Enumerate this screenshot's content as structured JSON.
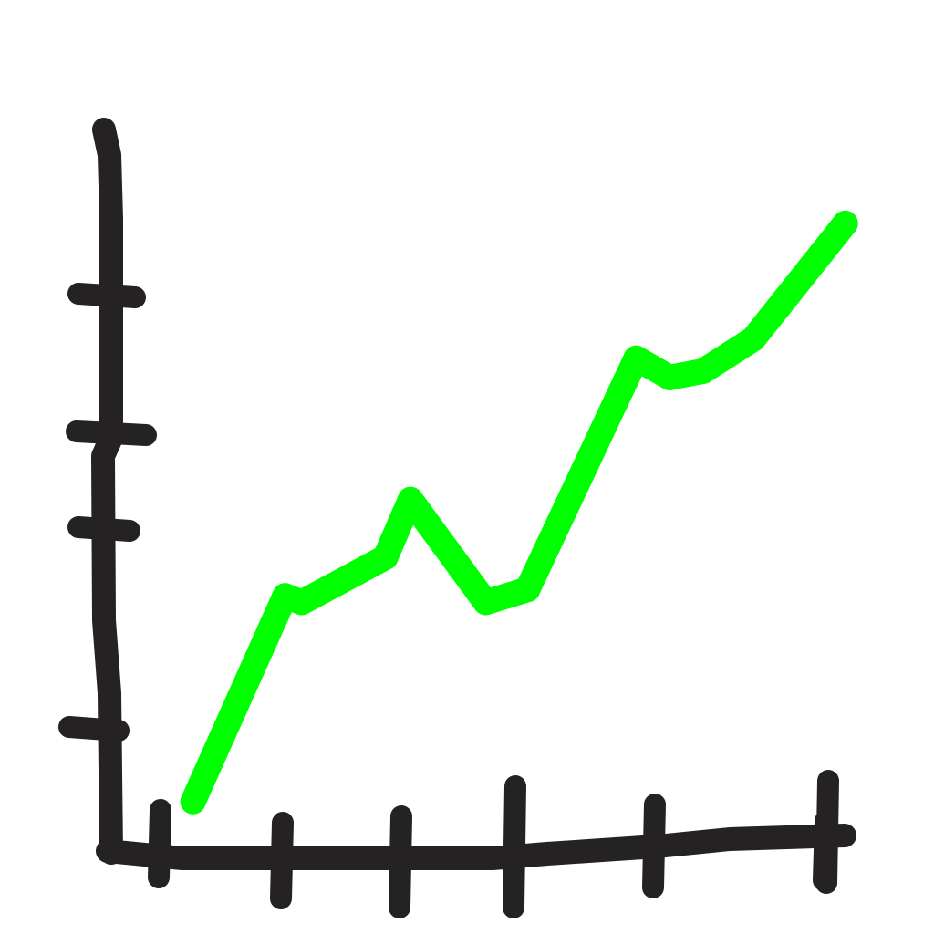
{
  "chart_data": {
    "type": "line",
    "title": "",
    "xlabel": "",
    "ylabel": "",
    "x": [
      1.0,
      2.1,
      2.3,
      3.3,
      3.6,
      4.5,
      5.0,
      6.3,
      6.7,
      7.1,
      7.7,
      8.8
    ],
    "series": [
      {
        "values": [
          0.4,
          2.0,
          1.95,
          2.3,
          2.75,
          1.95,
          2.05,
          3.85,
          3.7,
          3.75,
          4.0,
          4.9
        ]
      }
    ],
    "xlim": [
      0,
      9
    ],
    "ylim": [
      0,
      6
    ],
    "x_ticks": [
      1,
      2,
      3,
      4,
      5,
      6,
      7
    ],
    "y_ticks": [
      1,
      4,
      5,
      6
    ],
    "grid": false,
    "legend": "none"
  },
  "colors": {
    "axis": "#242223",
    "line": "#00ff00",
    "background": "#ffffff"
  }
}
